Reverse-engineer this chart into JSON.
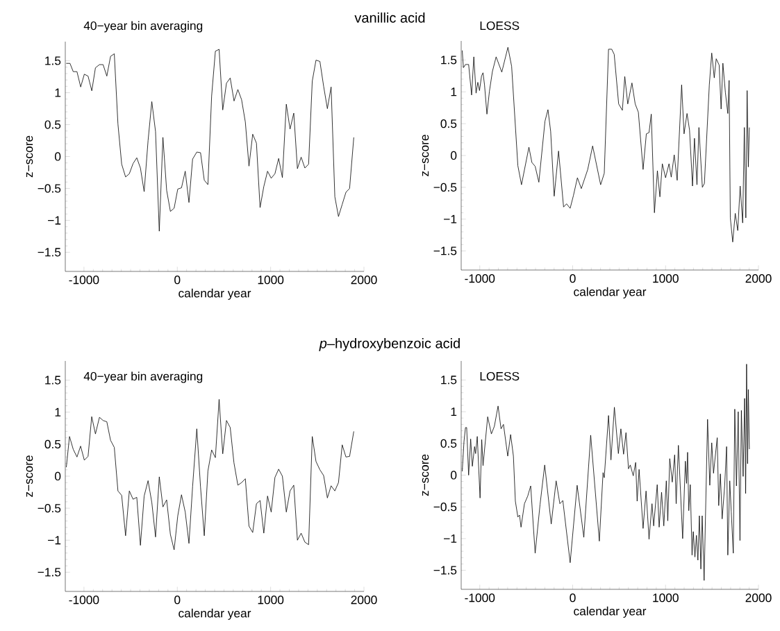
{
  "chart_data": [
    {
      "type": "line",
      "title": "vanillic acid",
      "subtitle": "40−year bin averaging",
      "xlabel": "calendar year",
      "ylabel": "z−score",
      "color": "#000000",
      "x": [
        -1190,
        -1150,
        -1115,
        -1075,
        -1035,
        -996,
        -956,
        -916,
        -877,
        -834,
        -795,
        -755,
        -715,
        -675,
        -636,
        -596,
        -554,
        -514,
        -474,
        -434,
        -395,
        -355,
        -313,
        -273,
        -233,
        -193,
        -154,
        -114,
        -74,
        -34,
        5,
        45,
        85,
        125,
        164,
        209,
        249,
        289,
        328,
        368,
        408,
        448,
        487,
        527,
        567,
        608,
        649,
        689,
        729,
        768,
        808,
        848,
        887,
        927,
        967,
        1006,
        1046,
        1086,
        1126,
        1168,
        1208,
        1248,
        1287,
        1327,
        1367,
        1407,
        1446,
        1486,
        1528,
        1568,
        1608,
        1648,
        1688,
        1727,
        1767,
        1807,
        1846,
        1891
      ],
      "values": [
        1.46,
        1.46,
        1.33,
        1.33,
        1.09,
        1.29,
        1.26,
        1.03,
        1.39,
        1.44,
        1.44,
        1.26,
        1.57,
        1.61,
        0.51,
        -0.12,
        -0.32,
        -0.27,
        -0.11,
        -0.02,
        -0.18,
        -0.55,
        0.25,
        0.86,
        0.39,
        -1.17,
        0.3,
        -0.53,
        -0.86,
        -0.81,
        -0.51,
        -0.49,
        -0.23,
        -0.72,
        -0.04,
        0.07,
        0.06,
        -0.37,
        -0.44,
        0.95,
        1.65,
        1.68,
        0.73,
        1.15,
        1.23,
        0.87,
        1.05,
        0.89,
        0.54,
        -0.15,
        0.35,
        0.21,
        -0.8,
        -0.47,
        -0.23,
        -0.34,
        -0.27,
        -0.03,
        -0.33,
        0.82,
        0.43,
        0.68,
        -0.19,
        -0.01,
        -0.18,
        -0.12,
        1.18,
        1.51,
        1.49,
        1.1,
        0.75,
        1.09,
        -0.63,
        -0.94,
        -0.75,
        -0.56,
        -0.5,
        0.3
      ],
      "xlim": [
        -1200,
        2000
      ],
      "ylim": [
        -1.8,
        1.8
      ],
      "xticks": [
        -1000,
        0,
        1000,
        2000
      ],
      "yticks": [
        {
          "value": -1.5,
          "label": "−1.5"
        },
        {
          "value": -1,
          "label": "−1"
        },
        {
          "value": -0.5,
          "label": "−0.5"
        },
        0,
        0.5,
        1,
        1.5
      ]
    },
    {
      "type": "line",
      "subtitle": "LOESS",
      "xlabel": "calendar year",
      "ylabel": "z−score",
      "color": "#000000",
      "x": [
        -1189,
        -1176,
        -1154,
        -1120,
        -1088,
        -1064,
        -1040,
        -1021,
        -1003,
        -981,
        -965,
        -949,
        -923,
        -896,
        -864,
        -824,
        -763,
        -697,
        -657,
        -590,
        -551,
        -471,
        -439,
        -404,
        -364,
        -298,
        -266,
        -237,
        -199,
        -152,
        -98,
        -66,
        -27,
        8,
        51,
        93,
        162,
        215,
        301,
        340,
        386,
        420,
        447,
        495,
        535,
        561,
        593,
        638,
        673,
        707,
        758,
        793,
        822,
        846,
        880,
        912,
        939,
        965,
        1000,
        1037,
        1061,
        1093,
        1125,
        1173,
        1199,
        1231,
        1258,
        1290,
        1311,
        1338,
        1359,
        1396,
        1418,
        1471,
        1497,
        1524,
        1545,
        1577,
        1598,
        1617,
        1644,
        1670,
        1684,
        1697,
        1723,
        1750,
        1777,
        1803,
        1830,
        1848,
        1864,
        1878,
        1891,
        1902
      ],
      "values": [
        1.65,
        1.38,
        1.43,
        1.43,
        0.95,
        1.55,
        0.98,
        1.15,
        1.02,
        1.25,
        1.3,
        1.11,
        0.65,
        1.01,
        1.32,
        1.55,
        1.31,
        1.7,
        1.4,
        -0.16,
        -0.46,
        0.13,
        -0.11,
        -0.17,
        -0.42,
        0.54,
        0.72,
        0.38,
        -0.64,
        0.07,
        -0.81,
        -0.76,
        -0.83,
        -0.63,
        -0.35,
        -0.52,
        -0.22,
        0.15,
        -0.46,
        -0.28,
        1.67,
        1.67,
        1.59,
        0.81,
        0.71,
        1.24,
        0.81,
        1.14,
        0.81,
        0.68,
        -0.22,
        0.34,
        0.36,
        0.65,
        -0.9,
        -0.24,
        -0.65,
        -0.13,
        -0.35,
        -0.13,
        -0.34,
        0.01,
        -0.39,
        1.11,
        0.34,
        0.66,
        0.4,
        -0.48,
        0.27,
        -0.46,
        0.44,
        -0.5,
        -0.44,
        1.11,
        1.61,
        1.22,
        1.52,
        1.42,
        0.73,
        1.45,
        0.99,
        0.66,
        1.18,
        -0.98,
        -1.36,
        -0.91,
        -1.18,
        -0.48,
        -1.06,
        0.44,
        -0.98,
        1.02,
        -0.18,
        0.44
      ],
      "xlim": [
        -1200,
        2000
      ],
      "ylim": [
        -1.8,
        1.8
      ],
      "xticks": [
        -1000,
        0,
        1000,
        2000
      ],
      "yticks": [
        {
          "value": -1.5,
          "label": "−1.5"
        },
        {
          "value": -1,
          "label": "−1"
        },
        {
          "value": -0.5,
          "label": "−0.5"
        },
        0,
        0.5,
        1,
        1.5
      ]
    },
    {
      "type": "line",
      "title": "*p*–hydroxybenzoic acid",
      "subtitle": "40−year bin averaging",
      "xlabel": "calendar year",
      "ylabel": "z−score",
      "color": "#000000",
      "x": [
        -1189,
        -1155,
        -1115,
        -1075,
        -1036,
        -996,
        -956,
        -917,
        -877,
        -834,
        -795,
        -755,
        -715,
        -675,
        -636,
        -596,
        -554,
        -514,
        -474,
        -434,
        -395,
        -355,
        -313,
        -273,
        -233,
        -193,
        -154,
        -114,
        -74,
        -34,
        5,
        45,
        85,
        125,
        164,
        209,
        249,
        289,
        328,
        368,
        408,
        448,
        487,
        527,
        567,
        607,
        649,
        689,
        729,
        768,
        808,
        848,
        887,
        927,
        967,
        1006,
        1046,
        1086,
        1126,
        1168,
        1208,
        1248,
        1287,
        1327,
        1367,
        1407,
        1446,
        1486,
        1528,
        1568,
        1608,
        1648,
        1688,
        1727,
        1767,
        1807,
        1846,
        1891
      ],
      "values": [
        0.14,
        0.62,
        0.42,
        0.3,
        0.47,
        0.25,
        0.31,
        0.93,
        0.66,
        0.92,
        0.87,
        0.85,
        0.56,
        0.45,
        -0.23,
        -0.3,
        -0.93,
        -0.23,
        -0.36,
        -0.33,
        -1.08,
        -0.31,
        -0.07,
        -0.41,
        -0.95,
        -0.01,
        -0.48,
        -0.37,
        -0.91,
        -1.15,
        -0.62,
        -0.29,
        -0.56,
        -1.05,
        -0.16,
        0.74,
        -0.17,
        -0.93,
        0.08,
        0.41,
        0.29,
        1.2,
        0.35,
        0.87,
        0.76,
        0.21,
        -0.14,
        -0.1,
        -0.04,
        -0.78,
        -0.88,
        -0.43,
        -0.38,
        -0.89,
        -0.31,
        -0.56,
        -0.02,
        0.11,
        0.0,
        -0.56,
        -0.23,
        -0.14,
        -1.0,
        -0.89,
        -1.03,
        -1.07,
        0.62,
        0.23,
        0.1,
        0.01,
        -0.34,
        -0.15,
        -0.23,
        -0.1,
        0.49,
        0.3,
        0.31,
        0.7
      ],
      "xlim": [
        -1200,
        2000
      ],
      "ylim": [
        -1.8,
        1.8
      ],
      "xticks": [
        -1000,
        0,
        1000,
        2000
      ],
      "yticks": [
        {
          "value": -1.5,
          "label": "−1.5"
        },
        {
          "value": -1,
          "label": "−1"
        },
        {
          "value": -0.5,
          "label": "−0.5"
        },
        0,
        0.5,
        1,
        1.5
      ]
    },
    {
      "type": "line",
      "subtitle": "LOESS",
      "xlabel": "calendar year",
      "ylabel": "z−score",
      "color": "#000000",
      "x": [
        -1189,
        -1170,
        -1154,
        -1141,
        -1120,
        -1098,
        -1080,
        -1056,
        -1045,
        -1027,
        -997,
        -979,
        -965,
        -915,
        -875,
        -843,
        -803,
        -771,
        -745,
        -699,
        -668,
        -638,
        -617,
        -590,
        -572,
        -556,
        -519,
        -484,
        -452,
        -404,
        -351,
        -301,
        -231,
        -178,
        -138,
        -106,
        -27,
        48,
        120,
        194,
        287,
        327,
        340,
        386,
        412,
        449,
        492,
        519,
        548,
        574,
        601,
        620,
        652,
        678,
        694,
        715,
        758,
        790,
        822,
        854,
        872,
        910,
        931,
        957,
        981,
        1008,
        1024,
        1045,
        1072,
        1098,
        1114,
        1138,
        1184,
        1213,
        1226,
        1237,
        1250,
        1266,
        1285,
        1298,
        1316,
        1332,
        1348,
        1364,
        1380,
        1394,
        1415,
        1452,
        1476,
        1497,
        1516,
        1556,
        1572,
        1590,
        1609,
        1636,
        1657,
        1670,
        1691,
        1707,
        1729,
        1745,
        1763,
        1782,
        1801,
        1816,
        1835,
        1851,
        1862,
        1872,
        1883,
        1891,
        1902
      ],
      "values": [
        0.06,
        0.53,
        0.75,
        0.75,
        0.0,
        0.57,
        0.14,
        0.45,
        0.34,
        0.61,
        -0.36,
        0.56,
        0.15,
        0.92,
        0.65,
        0.77,
        1.09,
        0.73,
        0.8,
        0.3,
        0.64,
        0.3,
        -0.41,
        -0.66,
        -0.63,
        -0.82,
        -0.45,
        -0.33,
        -0.17,
        -1.23,
        -0.46,
        0.16,
        -0.77,
        -0.09,
        -0.45,
        -0.4,
        -1.38,
        -0.16,
        -0.98,
        0.63,
        -1.04,
        0.04,
        -0.04,
        0.94,
        0.24,
        1.07,
        0.34,
        0.73,
        0.33,
        0.67,
        0.1,
        0.16,
        -0.01,
        0.2,
        -0.41,
        0.09,
        -0.84,
        -0.25,
        -1.01,
        -0.45,
        -0.8,
        -0.15,
        -0.82,
        -0.27,
        -0.8,
        -0.09,
        -0.72,
        0.26,
        -0.11,
        0.32,
        -0.45,
        0.47,
        -1.0,
        0.22,
        -0.13,
        0.36,
        -0.56,
        -0.15,
        -1.26,
        -0.89,
        -1.29,
        -0.95,
        -1.34,
        -0.64,
        -1.48,
        -0.64,
        -1.66,
        0.88,
        -0.16,
        0.51,
        0.03,
        0.59,
        -0.48,
        0.02,
        -0.69,
        -0.17,
        0.45,
        -1.26,
        -0.09,
        -0.58,
        -1.23,
        1.04,
        -0.17,
        1.0,
        -1.03,
        1.02,
        -0.02,
        1.21,
        -0.29,
        1.75,
        0.18,
        1.35,
        0.41
      ],
      "xlim": [
        -1200,
        2000
      ],
      "ylim": [
        -1.8,
        1.8
      ],
      "xticks": [
        -1000,
        0,
        1000,
        2000
      ],
      "yticks": [
        {
          "value": -1.5,
          "label": "−1.5"
        },
        {
          "value": -1,
          "label": "−1"
        },
        {
          "value": -0.5,
          "label": "−0.5"
        },
        0,
        0.5,
        1,
        1.5
      ]
    }
  ]
}
